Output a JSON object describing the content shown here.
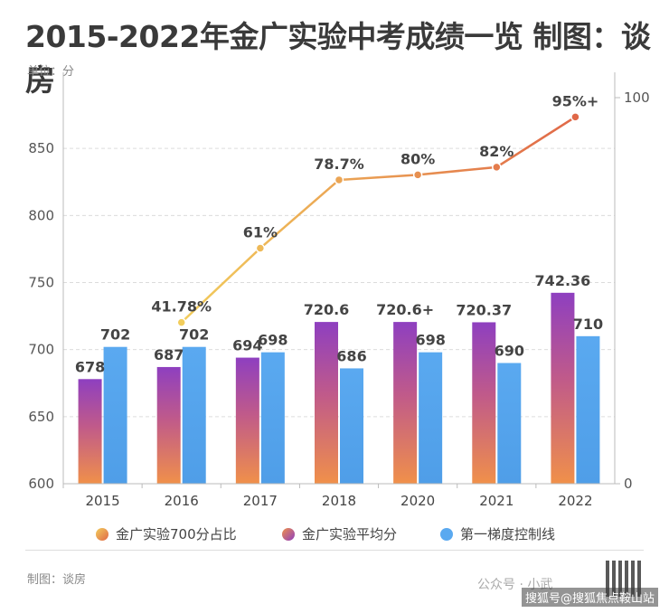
{
  "header": {
    "title": "2015-2022年金广实验中考成绩一览 制图：谈房",
    "unit": "单位：分"
  },
  "footer": {
    "credit": "制图：谈房",
    "wechat": "公众号 · 小武",
    "watermark": "搜狐号@搜狐焦点鞍山站"
  },
  "colors": {
    "bar1_top": "#8e3fc0",
    "bar1_bottom": "#f0904a",
    "bar2": "#5aa9f0",
    "line_start": "#f2cd5c",
    "line_end": "#e06848",
    "grid": "#dcdcdc"
  },
  "chart_data": {
    "type": "bar",
    "categories": [
      "2015",
      "2016",
      "2017",
      "2018",
      "2020",
      "2021",
      "2022"
    ],
    "ylim": [
      600,
      900
    ],
    "y_ticks": [
      600,
      650,
      700,
      750,
      800,
      850
    ],
    "y2lim": [
      0,
      100
    ],
    "y2_ticks": [
      0,
      100
    ],
    "series": [
      {
        "name": "金广实验平均分",
        "kind": "bar",
        "values": [
          678,
          687,
          694,
          720.6,
          720.6,
          720.37,
          742.36
        ],
        "labels": [
          "678",
          "687",
          "694",
          "720.6",
          "720.6+",
          "720.37",
          "742.36"
        ]
      },
      {
        "name": "第一梯度控制线",
        "kind": "bar",
        "values": [
          702,
          702,
          698,
          686,
          698,
          690,
          710
        ],
        "labels": [
          "702",
          "702",
          "698",
          "686",
          "698",
          "690",
          "710"
        ]
      },
      {
        "name": "金广实验700分占比",
        "kind": "line",
        "axis": "right",
        "values": [
          null,
          41.78,
          61,
          78.7,
          80,
          82,
          95
        ],
        "labels": [
          "",
          "41.78%",
          "61%",
          "78.7%",
          "80%",
          "82%",
          "95%+"
        ]
      }
    ],
    "legend": [
      "金广实验700分占比",
      "金广实验平均分",
      "第一梯度控制线"
    ]
  }
}
